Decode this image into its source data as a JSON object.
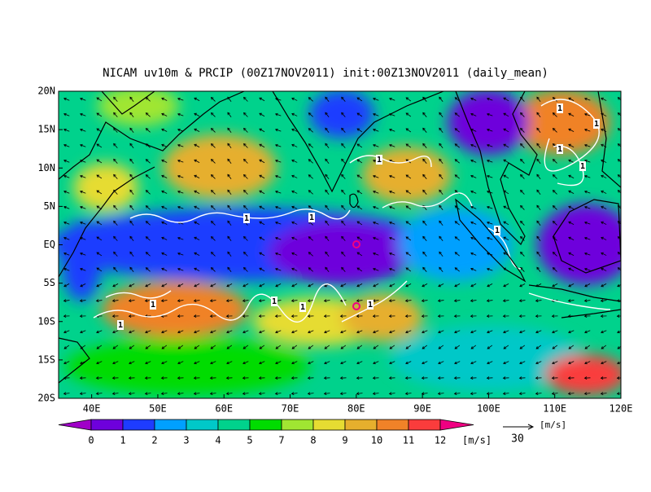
{
  "title": "NICAM uv10m & PRCIP (00Z17NOV2011) init:00Z13NOV2011 (daily_mean)",
  "map": {
    "lon_range": [
      35,
      120
    ],
    "lat_range": [
      -20,
      20
    ],
    "lon_ticks": [
      {
        "value": 40,
        "label": "40E"
      },
      {
        "value": 50,
        "label": "50E"
      },
      {
        "value": 60,
        "label": "60E"
      },
      {
        "value": 70,
        "label": "70E"
      },
      {
        "value": 80,
        "label": "80E"
      },
      {
        "value": 90,
        "label": "90E"
      },
      {
        "value": 100,
        "label": "100E"
      },
      {
        "value": 110,
        "label": "110E"
      },
      {
        "value": 120,
        "label": "120E"
      }
    ],
    "lat_ticks": [
      {
        "value": 20,
        "label": "20N"
      },
      {
        "value": 15,
        "label": "15N"
      },
      {
        "value": 10,
        "label": "10N"
      },
      {
        "value": 5,
        "label": "5N"
      },
      {
        "value": 0,
        "label": "EQ"
      },
      {
        "value": -5,
        "label": "5S"
      },
      {
        "value": -10,
        "label": "10S"
      },
      {
        "value": -15,
        "label": "15S"
      },
      {
        "value": -20,
        "label": "20S"
      }
    ]
  },
  "colorbar": {
    "labels": [
      0,
      1,
      2,
      3,
      4,
      5,
      7,
      8,
      9,
      10,
      11,
      12
    ],
    "colors": [
      "#a000c8",
      "#6e00dc",
      "#1e3cff",
      "#00a0ff",
      "#00c8c8",
      "#00d28c",
      "#00dc00",
      "#a0e632",
      "#e6dc32",
      "#e6af2d",
      "#f08228",
      "#fa3c3c",
      "#f00082"
    ],
    "unit": "[m/s]"
  },
  "vector_reference": {
    "magnitude": 30,
    "unit": "[m/s]"
  },
  "contour_label": "1"
}
